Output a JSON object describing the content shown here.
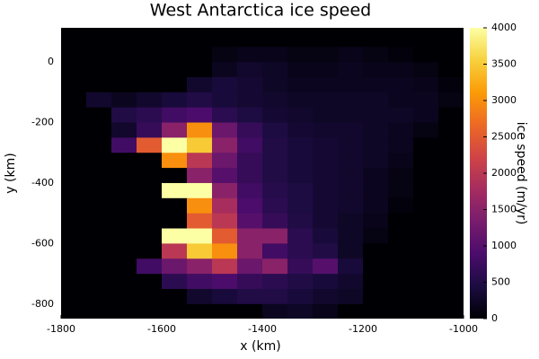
{
  "chart_data": {
    "type": "heatmap",
    "title": "West Antarctica ice speed",
    "xlabel": "x (km)",
    "ylabel": "y (km)",
    "colorbar_label": "ice speed (m/yr)",
    "colormap": [
      "#000004",
      "#1b0c41",
      "#4a0c6b",
      "#781c6d",
      "#a52c60",
      "#cf4446",
      "#ed6925",
      "#fb9b06",
      "#f7d13d",
      "#fcffa4"
    ],
    "xlim": [
      -1800,
      -1000
    ],
    "ylim": [
      -848,
      113
    ],
    "xticks": [
      -1800,
      -1600,
      -1400,
      -1200,
      -1000
    ],
    "yticks": [
      -800,
      -600,
      -400,
      -200,
      0
    ],
    "clim": [
      0,
      4000
    ],
    "cticks": [
      0,
      500,
      1000,
      1500,
      2000,
      2500,
      3000,
      3500,
      4000
    ],
    "x": [
      -1775,
      -1725,
      -1675,
      -1625,
      -1575,
      -1525,
      -1475,
      -1425,
      -1375,
      -1325,
      -1275,
      -1225,
      -1175,
      -1125,
      -1075,
      -1025
    ],
    "y": [
      75,
      25,
      -25,
      -75,
      -125,
      -175,
      -225,
      -275,
      -325,
      -375,
      -425,
      -475,
      -525,
      -575,
      -625,
      -675,
      -725,
      -775,
      -825
    ],
    "z": [
      [
        0,
        0,
        0,
        0,
        0,
        0,
        0,
        0,
        0,
        0,
        0,
        0,
        0,
        0,
        0,
        0
      ],
      [
        0,
        0,
        0,
        0,
        0,
        0,
        100,
        150,
        150,
        100,
        100,
        150,
        100,
        50,
        0,
        0
      ],
      [
        0,
        0,
        0,
        0,
        0,
        0,
        200,
        300,
        250,
        150,
        150,
        200,
        150,
        150,
        100,
        0
      ],
      [
        0,
        0,
        0,
        0,
        0,
        300,
        400,
        350,
        250,
        200,
        200,
        200,
        200,
        200,
        150,
        50
      ],
      [
        0,
        300,
        200,
        300,
        400,
        500,
        400,
        350,
        300,
        250,
        250,
        250,
        250,
        200,
        200,
        100
      ],
      [
        0,
        0,
        500,
        600,
        800,
        900,
        600,
        450,
        350,
        300,
        250,
        250,
        250,
        250,
        200,
        0
      ],
      [
        0,
        0,
        300,
        700,
        1500,
        3000,
        1200,
        700,
        450,
        350,
        300,
        300,
        250,
        200,
        100,
        0
      ],
      [
        0,
        0,
        800,
        2500,
        4000,
        3500,
        1500,
        800,
        500,
        400,
        350,
        300,
        250,
        200,
        0,
        0
      ],
      [
        0,
        0,
        0,
        0,
        3000,
        2000,
        1200,
        700,
        500,
        400,
        350,
        300,
        250,
        150,
        0,
        0
      ],
      [
        0,
        0,
        0,
        0,
        0,
        1500,
        1000,
        700,
        500,
        400,
        350,
        300,
        200,
        100,
        0,
        0
      ],
      [
        0,
        0,
        0,
        0,
        4000,
        4000,
        1500,
        800,
        550,
        450,
        350,
        300,
        200,
        100,
        0,
        0
      ],
      [
        0,
        0,
        0,
        0,
        0,
        3000,
        1800,
        900,
        600,
        450,
        350,
        300,
        200,
        50,
        0,
        0
      ],
      [
        0,
        0,
        0,
        0,
        0,
        2500,
        2000,
        1000,
        700,
        500,
        350,
        250,
        150,
        0,
        0,
        0
      ],
      [
        0,
        0,
        0,
        0,
        4000,
        4000,
        2500,
        1500,
        1500,
        600,
        400,
        250,
        100,
        0,
        0,
        0
      ],
      [
        0,
        0,
        0,
        0,
        2000,
        3500,
        3000,
        1500,
        800,
        600,
        500,
        250,
        0,
        0,
        0,
        0
      ],
      [
        0,
        0,
        0,
        800,
        1200,
        1500,
        2000,
        1200,
        1500,
        700,
        1000,
        400,
        0,
        0,
        0,
        0
      ],
      [
        0,
        0,
        0,
        0,
        600,
        800,
        900,
        700,
        600,
        500,
        400,
        300,
        0,
        0,
        0,
        0
      ],
      [
        0,
        0,
        0,
        0,
        0,
        300,
        400,
        500,
        500,
        400,
        300,
        250,
        0,
        0,
        0,
        0
      ],
      [
        0,
        0,
        0,
        0,
        0,
        0,
        0,
        0,
        200,
        250,
        150,
        0,
        0,
        0,
        0,
        0
      ]
    ]
  }
}
